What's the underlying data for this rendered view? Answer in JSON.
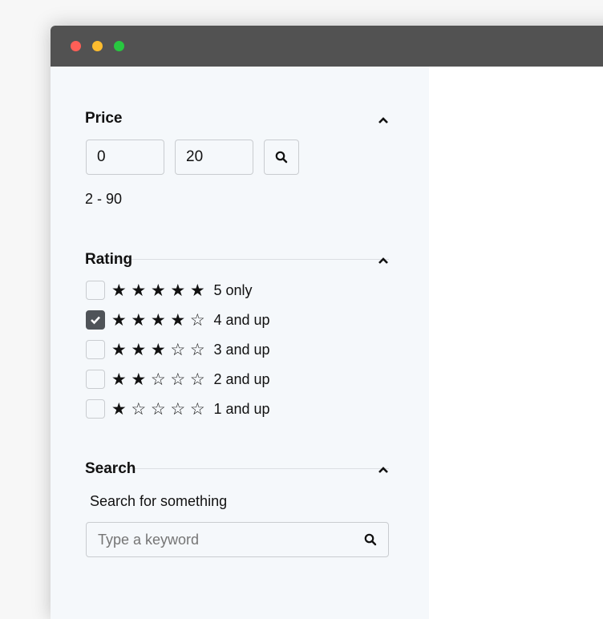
{
  "window": {
    "controls": [
      {
        "name": "close",
        "color": "#ff5f57"
      },
      {
        "name": "minimize",
        "color": "#febc2e"
      },
      {
        "name": "zoom",
        "color": "#28c840"
      }
    ]
  },
  "price": {
    "title": "Price",
    "min_value": "0",
    "max_value": "20",
    "range_text": "2 - 90"
  },
  "rating": {
    "title": "Rating",
    "options": [
      {
        "label": "5 only",
        "stars": 5,
        "checked": false
      },
      {
        "label": "4 and up",
        "stars": 4,
        "checked": true
      },
      {
        "label": "3 and up",
        "stars": 3,
        "checked": false
      },
      {
        "label": "2 and up",
        "stars": 2,
        "checked": false
      },
      {
        "label": "1 and up",
        "stars": 1,
        "checked": false
      }
    ]
  },
  "search": {
    "title": "Search",
    "label": "Search for something",
    "placeholder": "Type a keyword"
  },
  "colors": {
    "sidebar_bg": "#f5f8fb",
    "titlebar": "#525252",
    "checkbox_checked": "#4f5358"
  }
}
